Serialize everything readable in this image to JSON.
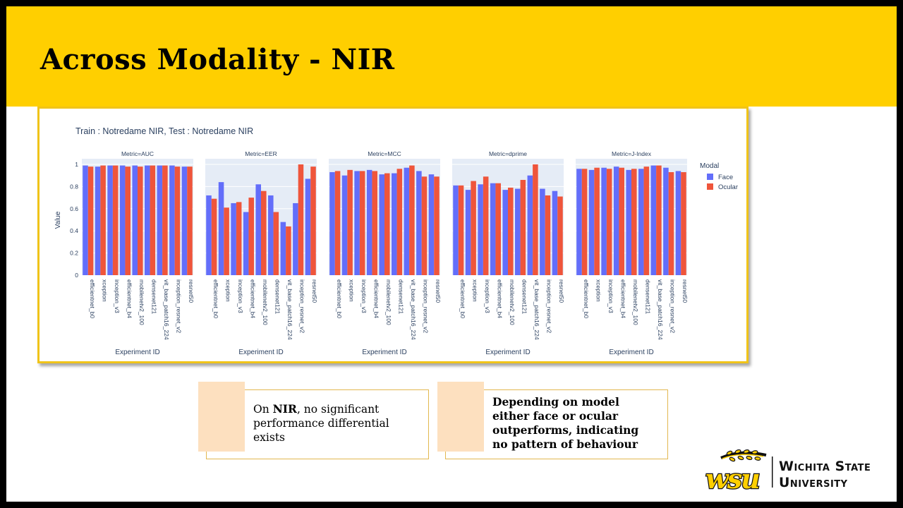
{
  "slide": {
    "title": "Across Modality - NIR",
    "banner_color": "#ffcf00"
  },
  "chart_data": {
    "type": "bar",
    "title": "Train : Notredame NIR, Test : Notredame NIR",
    "ylabel": "Value",
    "xlabel": "Experiment ID",
    "ylim": [
      0,
      1
    ],
    "yticks": [
      "0",
      "0.2",
      "0.4",
      "0.6",
      "0.8",
      "1"
    ],
    "legend": {
      "title": "Modal",
      "position": "right",
      "entries": [
        "Face",
        "Ocular"
      ]
    },
    "colors": {
      "Face": "#636efa",
      "Ocular": "#ef553b"
    },
    "categories": [
      "efficientnet_b0",
      "xception",
      "inception_v3",
      "efficientnet_b4",
      "mobilenetv2_100",
      "densenet121",
      "vit_base_patch16_224",
      "inception_resnet_v2",
      "resnet50"
    ],
    "panels": [
      {
        "title": "Metric=AUC",
        "series": [
          {
            "name": "Face",
            "values": [
              0.99,
              0.98,
              0.99,
              0.99,
              0.99,
              0.99,
              0.99,
              0.99,
              0.98
            ]
          },
          {
            "name": "Ocular",
            "values": [
              0.98,
              0.99,
              0.99,
              0.98,
              0.98,
              0.99,
              0.99,
              0.98,
              0.98
            ]
          }
        ]
      },
      {
        "title": "Metric=EER",
        "series": [
          {
            "name": "Face",
            "values": [
              0.72,
              0.84,
              0.65,
              0.57,
              0.82,
              0.72,
              0.48,
              0.65,
              0.87
            ]
          },
          {
            "name": "Ocular",
            "values": [
              0.69,
              0.61,
              0.66,
              0.7,
              0.76,
              0.57,
              0.44,
              1.0,
              0.98
            ]
          }
        ]
      },
      {
        "title": "Metric=MCC",
        "series": [
          {
            "name": "Face",
            "values": [
              0.93,
              0.9,
              0.94,
              0.95,
              0.91,
              0.92,
              0.97,
              0.94,
              0.91
            ]
          },
          {
            "name": "Ocular",
            "values": [
              0.94,
              0.95,
              0.94,
              0.94,
              0.92,
              0.96,
              0.99,
              0.89,
              0.89
            ]
          }
        ]
      },
      {
        "title": "Metric=dprime",
        "series": [
          {
            "name": "Face",
            "values": [
              0.81,
              0.77,
              0.82,
              0.83,
              0.77,
              0.78,
              0.9,
              0.78,
              0.76
            ]
          },
          {
            "name": "Ocular",
            "values": [
              0.81,
              0.85,
              0.89,
              0.83,
              0.79,
              0.86,
              1.0,
              0.72,
              0.71
            ]
          }
        ]
      },
      {
        "title": "Metric=J-Index",
        "series": [
          {
            "name": "Face",
            "values": [
              0.96,
              0.95,
              0.97,
              0.98,
              0.95,
              0.96,
              0.99,
              0.97,
              0.94
            ]
          },
          {
            "name": "Ocular",
            "values": [
              0.96,
              0.97,
              0.96,
              0.97,
              0.96,
              0.98,
              0.99,
              0.93,
              0.93
            ]
          }
        ]
      }
    ]
  },
  "callouts": [
    {
      "parts": [
        {
          "text": "On ",
          "bold": false
        },
        {
          "text": "NIR",
          "bold": true
        },
        {
          "text": ", no significant performance differential exists",
          "bold": false
        }
      ]
    },
    {
      "parts": [
        {
          "text": "Depending on model either face or ocular outperforms, indicating no pattern of behaviour",
          "bold": true
        }
      ]
    }
  ],
  "logo": {
    "mark": "wsu",
    "line1": "Wichita State",
    "line2": "University",
    "mark_color": "#ffcf00",
    "outline_color": "#111111"
  }
}
